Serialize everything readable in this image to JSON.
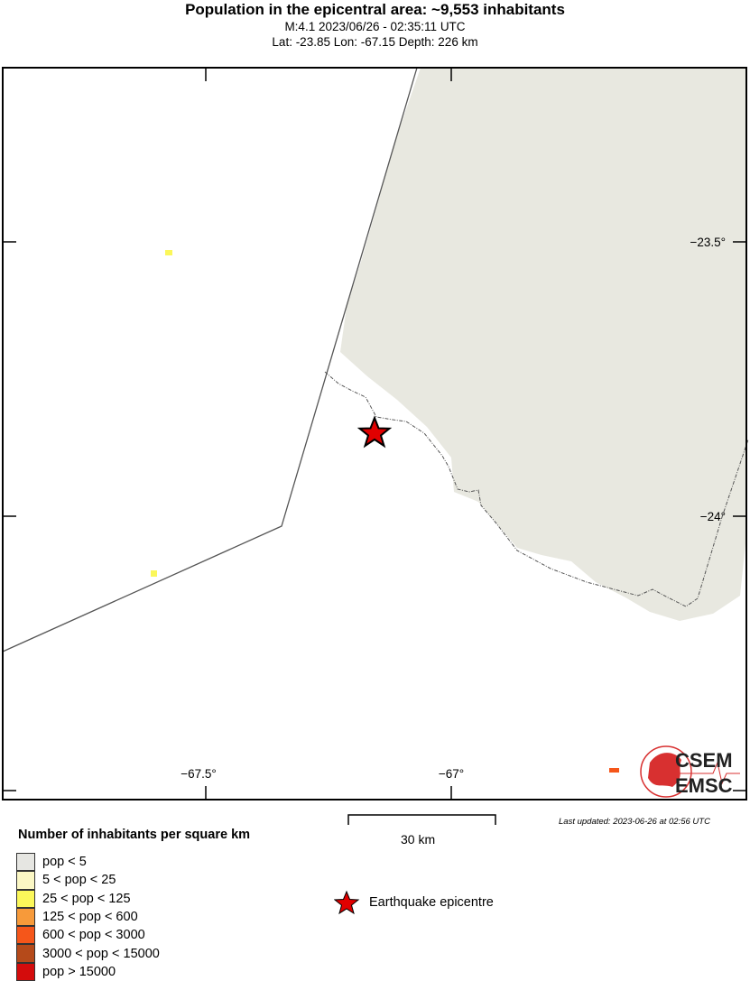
{
  "header": {
    "title": "Population in the epicentral area: ~9,553 inhabitants",
    "event": "M:4.1 2023/06/26 - 02:35:11 UTC",
    "location": "Lat: -23.85 Lon: -67.15 Depth: 226 km"
  },
  "map": {
    "lat_ticks": [
      "−23.5°",
      "−24°"
    ],
    "lon_ticks": [
      "−67.5°",
      "−67°"
    ],
    "scale_bar": "30 km",
    "last_updated": "Last updated: 2023-06-26 at 02:56 UTC",
    "logo": "CSEM EMSC",
    "land_color": "#e8e8e0"
  },
  "legend": {
    "title": "Number of inhabitants per square km",
    "items": [
      {
        "label": "pop < 5",
        "color": "#e6e6e2"
      },
      {
        "label": "5 < pop < 25",
        "color": "#fbf7c4"
      },
      {
        "label": "25 < pop < 125",
        "color": "#fbf75a"
      },
      {
        "label": "125 < pop < 600",
        "color": "#f79a3a"
      },
      {
        "label": "600 < pop < 3000",
        "color": "#f5561a"
      },
      {
        "label": "3000 < pop < 15000",
        "color": "#b54a1a"
      },
      {
        "label": "pop > 15000",
        "color": "#d40c0c"
      }
    ],
    "epicentre": "Earthquake epicentre"
  }
}
